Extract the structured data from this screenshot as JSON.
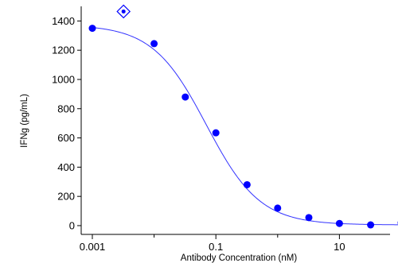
{
  "chart_data": {
    "type": "scatter",
    "xlabel": "Antibody  Concentration  (nM)",
    "ylabel": "IFNg (pg/mL)",
    "x_scale": "log",
    "xlim": [
      0.001,
      100
    ],
    "ylim": [
      -60,
      1500
    ],
    "x_ticks": [
      {
        "value": 0.001,
        "label": "0.001"
      },
      {
        "value": 0.1,
        "label": "0.1"
      },
      {
        "value": 10,
        "label": "10"
      }
    ],
    "y_ticks": [
      {
        "value": 0,
        "label": "0"
      },
      {
        "value": 200,
        "label": "200"
      },
      {
        "value": 400,
        "label": "400"
      },
      {
        "value": 600,
        "label": "600"
      },
      {
        "value": 800,
        "label": "800"
      },
      {
        "value": 1000,
        "label": "1000"
      },
      {
        "value": 1200,
        "label": "1200"
      },
      {
        "value": 1400,
        "label": "1400"
      }
    ],
    "points": [
      {
        "x": 0.001,
        "y": 1350
      },
      {
        "x": 0.01,
        "y": 1245
      },
      {
        "x": 0.032,
        "y": 880
      },
      {
        "x": 0.1,
        "y": 635
      },
      {
        "x": 0.32,
        "y": 280
      },
      {
        "x": 1,
        "y": 120
      },
      {
        "x": 3.2,
        "y": 55
      },
      {
        "x": 10,
        "y": 15
      },
      {
        "x": 32,
        "y": 5
      },
      {
        "x": 100,
        "y": 20
      }
    ],
    "excluded_points": [
      {
        "x": 0.0032,
        "y": 1465
      }
    ],
    "fit": {
      "type": "4PL",
      "top": 1375,
      "bottom": 5,
      "ec50": 0.07,
      "hill": 1.0
    },
    "grid": false,
    "legend": "none",
    "colors": {
      "points": "#0000ff",
      "fit_line": "#3333ff",
      "axis": "#000000"
    }
  }
}
